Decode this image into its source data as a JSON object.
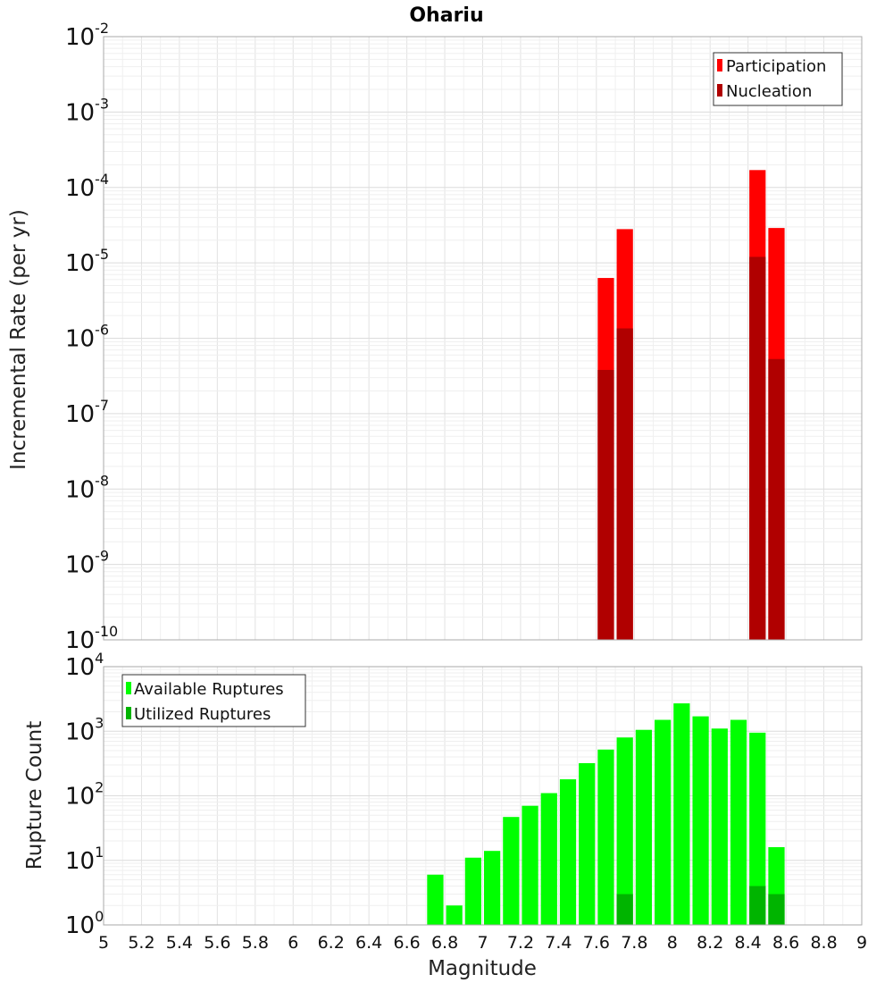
{
  "chart_data": [
    {
      "type": "bar",
      "title": "Ohariu",
      "xlabel": "",
      "ylabel": "Incremental Rate (per yr)",
      "yscale": "log",
      "xlim": [
        5,
        9
      ],
      "ylim_exp": [
        -10,
        -2
      ],
      "bin_width": 0.1,
      "ytick_exponents": [
        "-2",
        "-3",
        "-4",
        "-5",
        "-6",
        "-7",
        "-8",
        "-9",
        "-10"
      ],
      "legend": {
        "position": "top-right",
        "entries": [
          "Participation",
          "Nucleation"
        ]
      },
      "series": [
        {
          "name": "Participation",
          "color": "#ff0000",
          "x": [
            7.65,
            7.75,
            8.45,
            8.55
          ],
          "values": [
            6.3e-06,
            2.8e-05,
            0.00017,
            2.9e-05
          ]
        },
        {
          "name": "Nucleation",
          "color": "#b00000",
          "x": [
            7.65,
            7.75,
            8.45,
            8.55
          ],
          "values": [
            3.8e-07,
            1.35e-06,
            1.2e-05,
            5.3e-07
          ]
        }
      ]
    },
    {
      "type": "bar",
      "xlabel": "Magnitude",
      "ylabel": "Rupture Count",
      "yscale": "log",
      "xlim": [
        5,
        9
      ],
      "ylim_exp": [
        0,
        4
      ],
      "bin_width": 0.1,
      "ytick_exponents": [
        "4",
        "3",
        "2",
        "1",
        "0"
      ],
      "xtick_labels": [
        "5",
        "5.2",
        "5.4",
        "5.6",
        "5.8",
        "6",
        "6.2",
        "6.4",
        "6.6",
        "6.8",
        "7",
        "7.2",
        "7.4",
        "7.6",
        "7.8",
        "8",
        "8.2",
        "8.4",
        "8.6",
        "8.8",
        "9"
      ],
      "legend": {
        "position": "top-left",
        "entries": [
          "Available Ruptures",
          "Utilized Ruptures"
        ]
      },
      "series": [
        {
          "name": "Available Ruptures",
          "color": "#00ff00",
          "x": [
            6.75,
            6.85,
            6.95,
            7.05,
            7.15,
            7.25,
            7.35,
            7.45,
            7.55,
            7.65,
            7.75,
            7.85,
            7.95,
            8.05,
            8.15,
            8.25,
            8.35,
            8.45,
            8.55
          ],
          "values": [
            6,
            2,
            11,
            14,
            47,
            70,
            110,
            180,
            320,
            520,
            800,
            1050,
            1500,
            2700,
            1700,
            1100,
            1500,
            950,
            16
          ]
        },
        {
          "name": "Utilized Ruptures",
          "color": "#00b400",
          "x": [
            7.65,
            7.75,
            8.45,
            8.55
          ],
          "values": [
            1,
            3,
            4,
            3
          ]
        }
      ]
    }
  ]
}
